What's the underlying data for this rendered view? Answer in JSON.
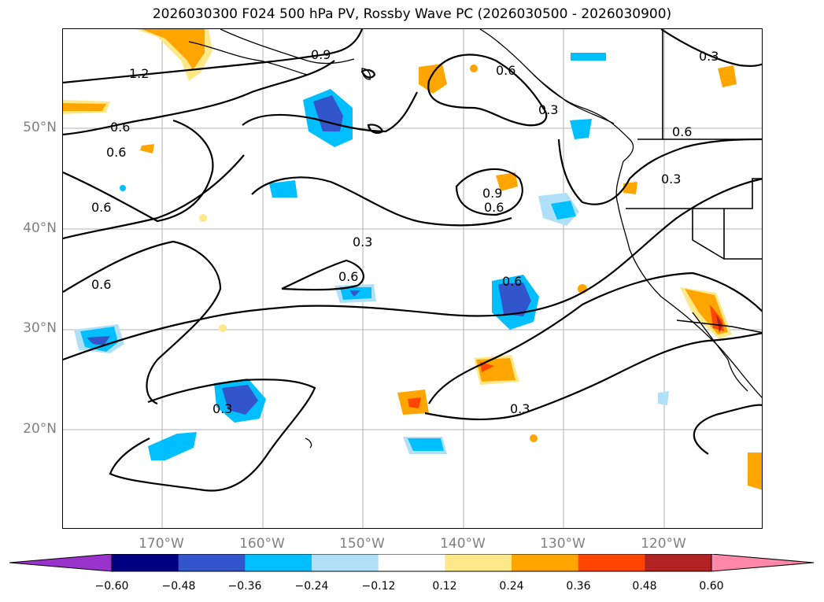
{
  "title": "2026030300 F024 500 hPa PV, Rossby Wave PC (2026030500 - 2026030900)",
  "lat_labels": [
    "50°N",
    "40°N",
    "30°N",
    "20°N"
  ],
  "lon_labels": [
    "170°W",
    "160°W",
    "150°W",
    "140°W",
    "130°W",
    "120°W"
  ],
  "contour_labels": [
    "1.2",
    "0.9",
    "0.6",
    "0.6",
    "0.6",
    "0.6",
    "0.3",
    "0.6",
    "0.6",
    "0.9",
    "0.6",
    "0.3",
    "0.6",
    "0.3",
    "0.3",
    "0.3",
    "0.3",
    "0.6"
  ],
  "colorbar": {
    "ticks": [
      "−0.60",
      "−0.48",
      "−0.36",
      "−0.24",
      "−0.12",
      "0.12",
      "0.24",
      "0.36",
      "0.48",
      "0.60"
    ],
    "colors": [
      "#9933cc",
      "#000080",
      "#3355cc",
      "#00bfff",
      "#b0e0f8",
      "#ffffff",
      "#ffe88a",
      "#ffa500",
      "#ff4500",
      "#b22222",
      "#ff88aa"
    ]
  }
}
